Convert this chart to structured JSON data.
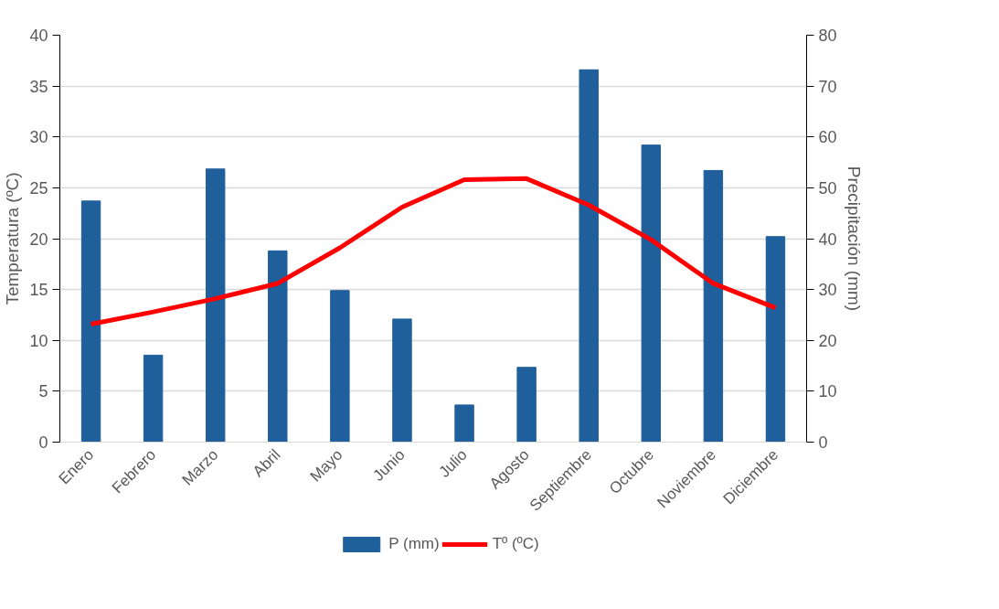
{
  "chart_data": {
    "type": "bar",
    "ylabel": "Temperatura (ºC)",
    "y2label": "Precipitación (mm)",
    "categories": [
      "Enero",
      "Febrero",
      "Marzo",
      "Abril",
      "Mayo",
      "Junio",
      "Julio",
      "Agosto",
      "Septiembre",
      "Octubre",
      "Noviembre",
      "Diciembre"
    ],
    "series": [
      {
        "name": "P (mm)",
        "axis": "y2",
        "color": "#1f5f9b",
        "values": [
          47.4,
          17.1,
          53.7,
          37.6,
          29.8,
          24.2,
          7.3,
          14.7,
          73.2,
          58.4,
          53.4,
          40.4
        ]
      },
      {
        "name": "Tº (ºC)",
        "type": "line",
        "color": "#ff0000",
        "values": [
          11.6,
          12.8,
          14.1,
          15.6,
          19.1,
          23.1,
          25.8,
          25.9,
          23.3,
          19.9,
          15.6,
          13.2
        ]
      }
    ],
    "ylim": [
      0,
      40
    ],
    "yticks": [
      0,
      5,
      10,
      15,
      20,
      25,
      30,
      35,
      40
    ],
    "y2lim": [
      0,
      80
    ],
    "y2ticks": [
      0,
      10,
      20,
      30,
      40,
      50,
      60,
      70,
      80
    ],
    "grid": "y",
    "legend": "bottom",
    "line_style": "solid",
    "marker": "none"
  }
}
